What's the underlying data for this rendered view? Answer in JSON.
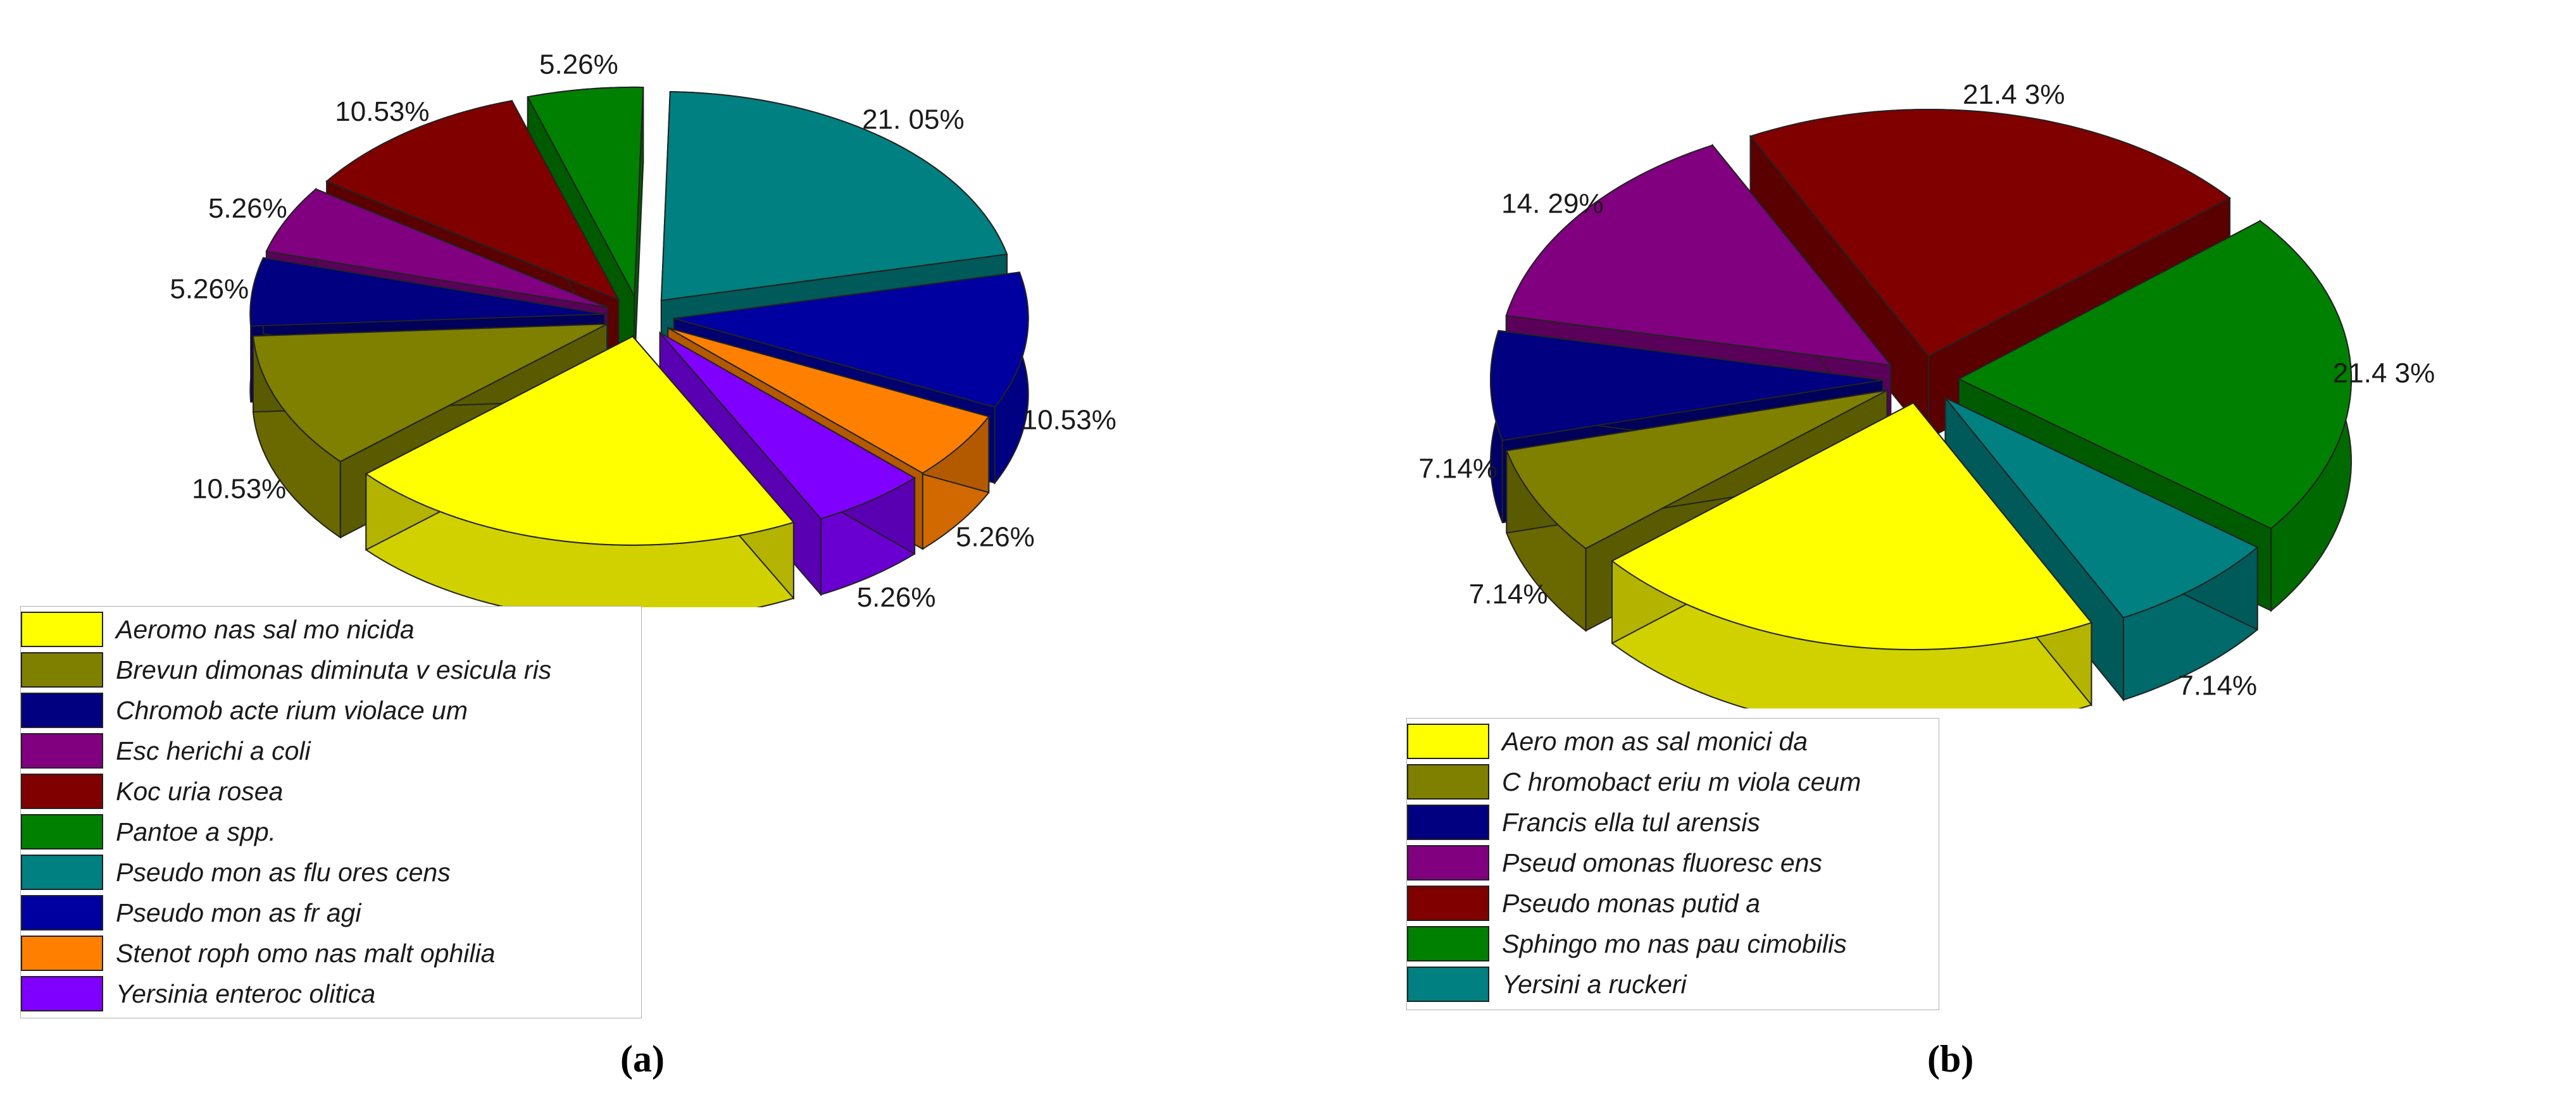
{
  "chart_data": [
    {
      "panel": "a",
      "type": "pie",
      "caption": "(a)",
      "legend_placement": "bottom-left",
      "slices": [
        {
          "label": "Aeromonas salmonicida",
          "value": 21.05,
          "display": "21.05%",
          "color": "#FFFF00"
        },
        {
          "label": "Brevundimonas diminuta vesicularis",
          "value": 10.53,
          "display": "10.53%",
          "color": "#808000"
        },
        {
          "label": "Chromobacterium violaceum",
          "value": 5.26,
          "display": "5.26%",
          "color": "#000080"
        },
        {
          "label": "Escherichia coli",
          "value": 5.26,
          "display": "5.26%",
          "color": "#800080"
        },
        {
          "label": "Kocuria rosea",
          "value": 10.53,
          "display": "10.53%",
          "color": "#800000"
        },
        {
          "label": "Pantoea spp.",
          "value": 5.26,
          "display": "5.26%",
          "color": "#008000"
        },
        {
          "label": "Pseudomonas fluorescens",
          "value": 21.05,
          "display": "21. 05%",
          "color": "#008080"
        },
        {
          "label": "Pseudomonas fragi",
          "value": 10.53,
          "display": "10.53%",
          "color": "#0000A0"
        },
        {
          "label": "Stenotrophomonas maltophilia",
          "value": 5.26,
          "display": "5.26%",
          "color": "#FF8000"
        },
        {
          "label": "Yersinia enterocolitica",
          "value": 5.26,
          "display": "5.26%",
          "color": "#8000FF"
        }
      ],
      "legend_labels": [
        "Aeromo nas  sal mo nicida",
        "Brevun dimonas  diminuta v esicula ris",
        "Chromob acte rium violace um",
        "Esc herichi a coli",
        "Koc uria  rosea",
        "Pantoe a spp.",
        "Pseudo mon as flu ores cens",
        "Pseudo mon as fr agi",
        "Stenot roph omo nas  malt ophilia",
        "Yersinia  enteroc olitica"
      ]
    },
    {
      "panel": "b",
      "type": "pie",
      "caption": "(b)",
      "legend_placement": "bottom-left",
      "slices": [
        {
          "label": "Aeromonas salmonicida",
          "value": 21.43,
          "display": "21.43%",
          "color": "#FFFF00"
        },
        {
          "label": "Chromobacterium violaceum",
          "value": 7.14,
          "display": "7.14%",
          "color": "#808000"
        },
        {
          "label": "Francisella tularensis",
          "value": 7.14,
          "display": "7.14%",
          "color": "#000080"
        },
        {
          "label": "Pseudomonas fluorescens",
          "value": 14.29,
          "display": "14. 29%",
          "color": "#800080"
        },
        {
          "label": "Pseudomonas putida",
          "value": 21.43,
          "display": "21.4 3%",
          "color": "#800000"
        },
        {
          "label": "Sphingomonas paucimobilis",
          "value": 21.43,
          "display": "21.4 3%",
          "color": "#008000"
        },
        {
          "label": "Yersinia ruckeri",
          "value": 7.14,
          "display": "7.14%",
          "color": "#008080"
        }
      ],
      "legend_labels": [
        "Aero mon as sal monici da",
        "C hromobact eriu m viola ceum",
        "Francis ella tul arensis",
        "Pseud omonas fluoresc ens",
        "Pseudo monas putid a",
        "Sphingo mo nas pau cimobilis",
        "Yersini a ruckeri"
      ]
    }
  ]
}
